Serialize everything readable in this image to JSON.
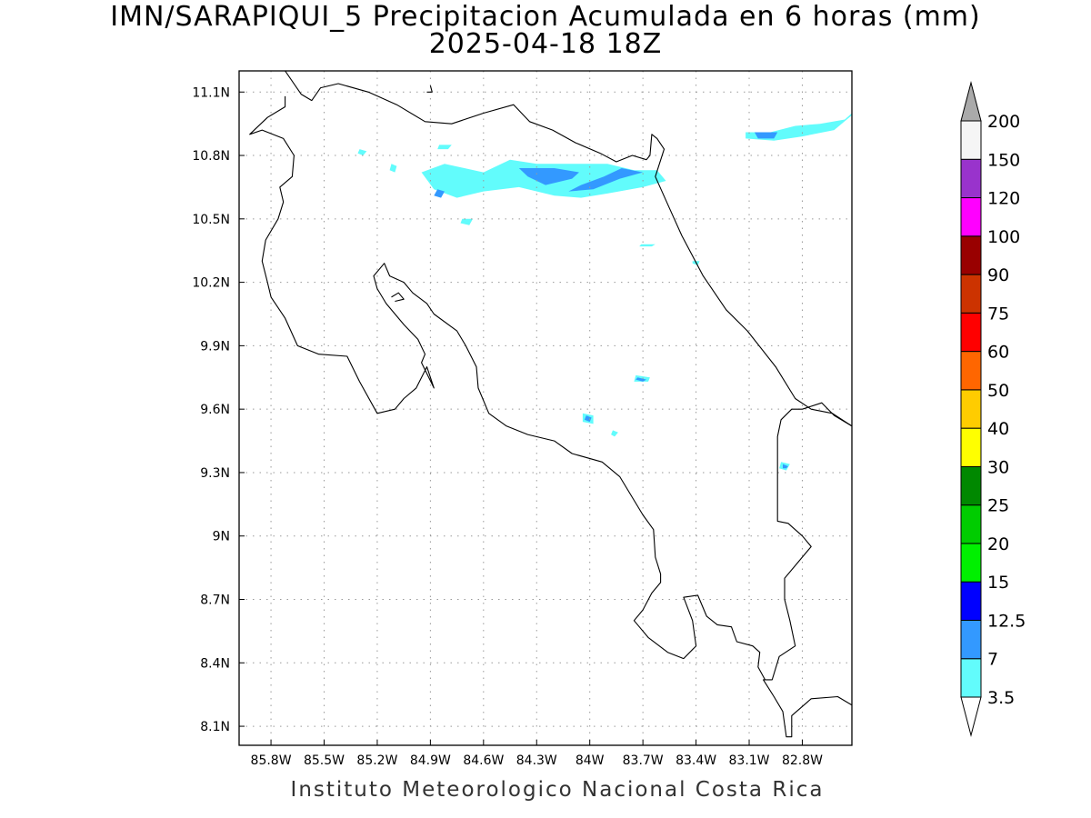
{
  "title": {
    "line1": "IMN/SARAPIQUI_5 Precipitacion Acumulada en 6 horas (mm)",
    "line2": "2025-04-18 18Z"
  },
  "footer": "Instituto Meteorologico Nacional Costa Rica",
  "axes": {
    "lon_range": [
      -85.98,
      -82.52
    ],
    "lat_range": [
      8.01,
      11.2
    ],
    "x_ticks": [
      {
        "value": -85.8,
        "label": "85.8W"
      },
      {
        "value": -85.5,
        "label": "85.5W"
      },
      {
        "value": -85.2,
        "label": "85.2W"
      },
      {
        "value": -84.9,
        "label": "84.9W"
      },
      {
        "value": -84.6,
        "label": "84.6W"
      },
      {
        "value": -84.3,
        "label": "84.3W"
      },
      {
        "value": -84.0,
        "label": "84W"
      },
      {
        "value": -83.7,
        "label": "83.7W"
      },
      {
        "value": -83.4,
        "label": "83.4W"
      },
      {
        "value": -83.1,
        "label": "83.1W"
      },
      {
        "value": -82.8,
        "label": "82.8W"
      }
    ],
    "y_ticks": [
      {
        "value": 8.1,
        "label": "8.1N"
      },
      {
        "value": 8.4,
        "label": "8.4N"
      },
      {
        "value": 8.7,
        "label": "8.7N"
      },
      {
        "value": 9.0,
        "label": "9N"
      },
      {
        "value": 9.3,
        "label": "9.3N"
      },
      {
        "value": 9.6,
        "label": "9.6N"
      },
      {
        "value": 9.9,
        "label": "9.9N"
      },
      {
        "value": 10.2,
        "label": "10.2N"
      },
      {
        "value": 10.5,
        "label": "10.5N"
      },
      {
        "value": 10.8,
        "label": "10.8N"
      },
      {
        "value": 11.1,
        "label": "11.1N"
      }
    ],
    "grid": "dotted"
  },
  "colorbar": {
    "labels": [
      "3.5",
      "7",
      "12.5",
      "15",
      "20",
      "25",
      "30",
      "40",
      "50",
      "60",
      "75",
      "90",
      "100",
      "120",
      "150",
      "200"
    ],
    "colors": [
      "#62fcfc",
      "#3399ff",
      "#0000ff",
      "#00f000",
      "#00cc00",
      "#008800",
      "#ffff00",
      "#ffcc00",
      "#ff6600",
      "#ff0000",
      "#cc3300",
      "#990000",
      "#ff00ff",
      "#9933cc",
      "#f5f5f5"
    ],
    "over_color": "#aaaaaa",
    "under_color": "#ffffff"
  },
  "precip_areas": [
    {
      "level": "3.5",
      "color": "#62fcfc",
      "lonlat": [
        [
          -84.82,
          10.76
        ],
        [
          -84.6,
          10.72
        ],
        [
          -84.45,
          10.78
        ],
        [
          -84.3,
          10.76
        ],
        [
          -84.1,
          10.76
        ],
        [
          -83.9,
          10.76
        ],
        [
          -83.75,
          10.73
        ],
        [
          -83.62,
          10.73
        ],
        [
          -83.57,
          10.68
        ],
        [
          -83.7,
          10.65
        ],
        [
          -83.9,
          10.62
        ],
        [
          -84.05,
          10.6
        ],
        [
          -84.2,
          10.61
        ],
        [
          -84.4,
          10.65
        ],
        [
          -84.6,
          10.63
        ],
        [
          -84.75,
          10.6
        ],
        [
          -84.88,
          10.64
        ],
        [
          -84.95,
          10.72
        ]
      ]
    },
    {
      "level": "3.5",
      "color": "#62fcfc",
      "lonlat": [
        [
          -83.12,
          10.91
        ],
        [
          -82.98,
          10.91
        ],
        [
          -82.84,
          10.94
        ],
        [
          -82.7,
          10.95
        ],
        [
          -82.56,
          10.97
        ],
        [
          -82.52,
          11.0
        ],
        [
          -82.52,
          10.99
        ],
        [
          -82.62,
          10.92
        ],
        [
          -82.8,
          10.89
        ],
        [
          -82.96,
          10.87
        ],
        [
          -83.12,
          10.88
        ]
      ]
    },
    {
      "level": "3.5",
      "color": "#62fcfc",
      "lonlat": [
        [
          -83.74,
          9.76
        ],
        [
          -83.66,
          9.75
        ],
        [
          -83.67,
          9.73
        ],
        [
          -83.75,
          9.73
        ]
      ]
    },
    {
      "level": "3.5",
      "color": "#62fcfc",
      "lonlat": [
        [
          -84.04,
          9.58
        ],
        [
          -83.98,
          9.57
        ],
        [
          -83.98,
          9.53
        ],
        [
          -84.04,
          9.54
        ]
      ]
    },
    {
      "level": "3.5",
      "color": "#62fcfc",
      "lonlat": [
        [
          -83.87,
          9.5
        ],
        [
          -83.84,
          9.49
        ],
        [
          -83.86,
          9.47
        ],
        [
          -83.88,
          9.48
        ]
      ]
    },
    {
      "level": "3.5",
      "color": "#62fcfc",
      "lonlat": [
        [
          -82.92,
          9.35
        ],
        [
          -82.87,
          9.34
        ],
        [
          -82.89,
          9.31
        ],
        [
          -82.93,
          9.32
        ]
      ]
    },
    {
      "level": "3.5",
      "color": "#62fcfc",
      "lonlat": [
        [
          -84.72,
          10.5
        ],
        [
          -84.66,
          10.5
        ],
        [
          -84.68,
          10.47
        ],
        [
          -84.73,
          10.48
        ]
      ]
    },
    {
      "level": "3.5",
      "color": "#62fcfc",
      "lonlat": [
        [
          -85.3,
          10.83
        ],
        [
          -85.26,
          10.82
        ],
        [
          -85.28,
          10.8
        ],
        [
          -85.31,
          10.81
        ]
      ]
    },
    {
      "level": "3.5",
      "color": "#62fcfc",
      "lonlat": [
        [
          -84.85,
          10.85
        ],
        [
          -84.78,
          10.85
        ],
        [
          -84.8,
          10.83
        ],
        [
          -84.86,
          10.83
        ]
      ]
    },
    {
      "level": "3.5",
      "color": "#62fcfc",
      "lonlat": [
        [
          -83.71,
          10.38
        ],
        [
          -83.63,
          10.38
        ],
        [
          -83.65,
          10.37
        ],
        [
          -83.72,
          10.37
        ]
      ]
    },
    {
      "level": "3.5",
      "color": "#62fcfc",
      "lonlat": [
        [
          -83.42,
          10.3
        ],
        [
          -83.38,
          10.3
        ],
        [
          -83.39,
          10.28
        ],
        [
          -83.42,
          10.29
        ]
      ]
    },
    {
      "level": "3.5",
      "color": "#62fcfc",
      "lonlat": [
        [
          -85.12,
          10.76
        ],
        [
          -85.09,
          10.75
        ],
        [
          -85.1,
          10.72
        ],
        [
          -85.13,
          10.73
        ]
      ]
    },
    {
      "level": "7",
      "color": "#3399ff",
      "lonlat": [
        [
          -84.4,
          10.74
        ],
        [
          -84.2,
          10.74
        ],
        [
          -84.06,
          10.72
        ],
        [
          -84.1,
          10.69
        ],
        [
          -84.25,
          10.66
        ],
        [
          -84.35,
          10.7
        ]
      ]
    },
    {
      "level": "7",
      "color": "#3399ff",
      "lonlat": [
        [
          -84.05,
          10.66
        ],
        [
          -83.92,
          10.7
        ],
        [
          -83.82,
          10.74
        ],
        [
          -83.7,
          10.72
        ],
        [
          -83.83,
          10.69
        ],
        [
          -83.98,
          10.64
        ],
        [
          -84.12,
          10.63
        ]
      ]
    },
    {
      "level": "7",
      "color": "#3399ff",
      "lonlat": [
        [
          -83.07,
          10.91
        ],
        [
          -82.94,
          10.91
        ],
        [
          -82.96,
          10.88
        ],
        [
          -83.05,
          10.88
        ]
      ]
    },
    {
      "level": "7",
      "color": "#3399ff",
      "lonlat": [
        [
          -84.86,
          10.64
        ],
        [
          -84.82,
          10.63
        ],
        [
          -84.84,
          10.6
        ],
        [
          -84.88,
          10.61
        ]
      ]
    },
    {
      "level": "7",
      "color": "#3399ff",
      "lonlat": [
        [
          -84.02,
          9.57
        ],
        [
          -83.99,
          9.56
        ],
        [
          -84.0,
          9.54
        ],
        [
          -84.03,
          9.55
        ]
      ]
    },
    {
      "level": "7",
      "color": "#3399ff",
      "lonlat": [
        [
          -83.73,
          9.75
        ],
        [
          -83.68,
          9.74
        ],
        [
          -83.7,
          9.73
        ],
        [
          -83.74,
          9.74
        ]
      ]
    },
    {
      "level": "7",
      "color": "#3399ff",
      "lonlat": [
        [
          -82.91,
          9.34
        ],
        [
          -82.88,
          9.33
        ],
        [
          -82.89,
          9.32
        ],
        [
          -82.91,
          9.32
        ]
      ]
    }
  ],
  "coastlines": [
    {
      "name": "main-coastline",
      "lonlat": [
        [
          -85.72,
          11.2
        ],
        [
          -85.63,
          11.09
        ],
        [
          -85.57,
          11.06
        ],
        [
          -85.52,
          11.12
        ],
        [
          -85.42,
          11.14
        ],
        [
          -85.25,
          11.1
        ],
        [
          -85.09,
          11.04
        ],
        [
          -84.93,
          10.96
        ],
        [
          -84.78,
          10.95
        ],
        [
          -84.6,
          11.0
        ],
        [
          -84.43,
          11.04
        ],
        [
          -84.34,
          10.96
        ],
        [
          -84.21,
          10.92
        ],
        [
          -84.08,
          10.86
        ],
        [
          -83.94,
          10.81
        ],
        [
          -83.85,
          10.77
        ],
        [
          -83.76,
          10.8
        ],
        [
          -83.68,
          10.78
        ],
        [
          -83.66,
          10.8
        ],
        [
          -83.65,
          10.9
        ],
        [
          -83.62,
          10.88
        ],
        [
          -83.58,
          10.83
        ],
        [
          -83.63,
          10.7
        ],
        [
          -83.55,
          10.55
        ],
        [
          -83.48,
          10.42
        ],
        [
          -83.36,
          10.23
        ],
        [
          -83.23,
          10.07
        ],
        [
          -83.11,
          9.97
        ],
        [
          -82.95,
          9.8
        ],
        [
          -82.84,
          9.65
        ],
        [
          -82.75,
          9.6
        ],
        [
          -82.63,
          9.58
        ],
        [
          -82.52,
          9.52
        ]
      ]
    },
    {
      "name": "panama-border",
      "lonlat": [
        [
          -82.52,
          9.52
        ],
        [
          -82.62,
          9.57
        ],
        [
          -82.69,
          9.63
        ],
        [
          -82.8,
          9.6
        ],
        [
          -82.86,
          9.6
        ],
        [
          -82.92,
          9.55
        ],
        [
          -82.94,
          9.47
        ],
        [
          -82.94,
          9.07
        ],
        [
          -82.88,
          9.06
        ],
        [
          -82.8,
          9.0
        ],
        [
          -82.75,
          8.95
        ],
        [
          -82.83,
          8.87
        ],
        [
          -82.9,
          8.8
        ],
        [
          -82.9,
          8.7
        ],
        [
          -82.87,
          8.6
        ],
        [
          -82.84,
          8.48
        ],
        [
          -82.93,
          8.43
        ],
        [
          -82.97,
          8.32
        ],
        [
          -83.02,
          8.32
        ],
        [
          -82.96,
          8.24
        ],
        [
          -82.91,
          8.17
        ],
        [
          -82.89,
          8.05
        ],
        [
          -82.86,
          8.05
        ],
        [
          -82.86,
          8.15
        ],
        [
          -82.75,
          8.23
        ],
        [
          -82.6,
          8.24
        ],
        [
          -82.52,
          8.2
        ]
      ]
    },
    {
      "name": "pacific-coast",
      "lonlat": [
        [
          -83.01,
          8.32
        ],
        [
          -83.05,
          8.38
        ],
        [
          -83.04,
          8.45
        ],
        [
          -83.08,
          8.48
        ],
        [
          -83.17,
          8.5
        ],
        [
          -83.2,
          8.57
        ],
        [
          -83.28,
          8.58
        ],
        [
          -83.34,
          8.62
        ],
        [
          -83.39,
          8.72
        ],
        [
          -83.47,
          8.71
        ],
        [
          -83.42,
          8.6
        ],
        [
          -83.4,
          8.48
        ],
        [
          -83.47,
          8.42
        ],
        [
          -83.56,
          8.45
        ],
        [
          -83.67,
          8.52
        ],
        [
          -83.72,
          8.57
        ],
        [
          -83.75,
          8.6
        ],
        [
          -83.7,
          8.65
        ],
        [
          -83.65,
          8.73
        ],
        [
          -83.6,
          8.78
        ],
        [
          -83.6,
          8.82
        ],
        [
          -83.63,
          8.9
        ],
        [
          -83.64,
          9.03
        ],
        [
          -83.7,
          9.1
        ],
        [
          -83.83,
          9.28
        ],
        [
          -83.93,
          9.35
        ],
        [
          -84.1,
          9.39
        ],
        [
          -84.2,
          9.45
        ],
        [
          -84.35,
          9.48
        ],
        [
          -84.47,
          9.52
        ],
        [
          -84.57,
          9.58
        ],
        [
          -84.63,
          9.7
        ],
        [
          -84.64,
          9.8
        ],
        [
          -84.7,
          9.9
        ],
        [
          -84.75,
          9.97
        ],
        [
          -84.88,
          10.05
        ],
        [
          -84.92,
          10.1
        ],
        [
          -85.0,
          10.15
        ],
        [
          -85.05,
          10.2
        ],
        [
          -85.13,
          10.23
        ],
        [
          -85.16,
          10.29
        ],
        [
          -85.22,
          10.23
        ],
        [
          -85.2,
          10.17
        ],
        [
          -85.15,
          10.1
        ],
        [
          -85.05,
          10.0
        ],
        [
          -84.97,
          9.93
        ],
        [
          -84.93,
          9.86
        ],
        [
          -84.95,
          9.82
        ],
        [
          -84.88,
          9.7
        ],
        [
          -84.92,
          9.8
        ],
        [
          -84.98,
          9.7
        ],
        [
          -85.05,
          9.65
        ],
        [
          -85.1,
          9.6
        ],
        [
          -85.2,
          9.58
        ],
        [
          -85.3,
          9.73
        ],
        [
          -85.37,
          9.85
        ],
        [
          -85.53,
          9.86
        ],
        [
          -85.65,
          9.9
        ],
        [
          -85.72,
          10.03
        ],
        [
          -85.8,
          10.13
        ],
        [
          -85.82,
          10.2
        ],
        [
          -85.85,
          10.3
        ],
        [
          -85.83,
          10.4
        ],
        [
          -85.76,
          10.5
        ],
        [
          -85.73,
          10.58
        ],
        [
          -85.75,
          10.65
        ],
        [
          -85.68,
          10.7
        ],
        [
          -85.67,
          10.8
        ],
        [
          -85.73,
          10.88
        ],
        [
          -85.85,
          10.92
        ],
        [
          -85.92,
          10.9
        ],
        [
          -85.82,
          10.98
        ],
        [
          -85.72,
          11.03
        ],
        [
          -85.72,
          11.08
        ]
      ]
    },
    {
      "name": "chira-island",
      "lonlat": [
        [
          -85.12,
          10.13
        ],
        [
          -85.08,
          10.15
        ],
        [
          -85.05,
          10.12
        ],
        [
          -85.1,
          10.11
        ]
      ]
    },
    {
      "name": "lake-islet",
      "lonlat": [
        [
          -84.92,
          11.1
        ],
        [
          -84.89,
          11.1
        ],
        [
          -84.9,
          11.13
        ]
      ]
    }
  ]
}
